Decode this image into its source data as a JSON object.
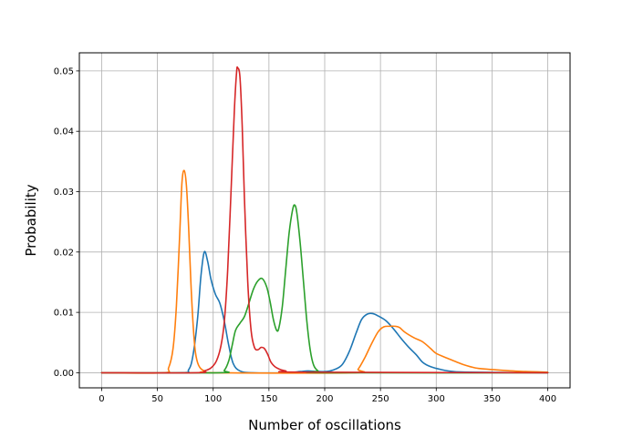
{
  "chart_data": {
    "type": "line",
    "title": "",
    "xlabel": "Number of oscillations",
    "ylabel": "Probability",
    "xlim": [
      -20,
      420
    ],
    "ylim": [
      -0.0025,
      0.053
    ],
    "xticks": [
      0,
      50,
      100,
      150,
      200,
      250,
      300,
      350,
      400
    ],
    "yticks": [
      0.0,
      0.01,
      0.02,
      0.03,
      0.04,
      0.05
    ],
    "xtick_labels": [
      "0",
      "50",
      "100",
      "150",
      "200",
      "250",
      "300",
      "350",
      "400"
    ],
    "ytick_labels": [
      "0.00",
      "0.01",
      "0.02",
      "0.03",
      "0.04",
      "0.05"
    ],
    "grid": true,
    "series": [
      {
        "color": "#1f77b4",
        "points": [
          [
            0,
            0
          ],
          [
            70,
            0
          ],
          [
            78,
            0.0005
          ],
          [
            82,
            0.003
          ],
          [
            86,
            0.009
          ],
          [
            89,
            0.016
          ],
          [
            92,
            0.02
          ],
          [
            95,
            0.0185
          ],
          [
            98,
            0.0155
          ],
          [
            102,
            0.013
          ],
          [
            106,
            0.0115
          ],
          [
            110,
            0.0085
          ],
          [
            114,
            0.0045
          ],
          [
            118,
            0.0015
          ],
          [
            124,
            0.0003
          ],
          [
            135,
            0
          ],
          [
            165,
            0
          ],
          [
            178,
            0.0002
          ],
          [
            185,
            0.0003
          ],
          [
            195,
            0.0002
          ],
          [
            205,
            0.0003
          ],
          [
            215,
            0.0012
          ],
          [
            222,
            0.0035
          ],
          [
            228,
            0.0065
          ],
          [
            233,
            0.0088
          ],
          [
            238,
            0.0097
          ],
          [
            243,
            0.0098
          ],
          [
            248,
            0.0094
          ],
          [
            255,
            0.0086
          ],
          [
            262,
            0.0072
          ],
          [
            268,
            0.0058
          ],
          [
            275,
            0.0043
          ],
          [
            282,
            0.003
          ],
          [
            288,
            0.0017
          ],
          [
            295,
            0.001
          ],
          [
            305,
            0.0005
          ],
          [
            315,
            0.0002
          ],
          [
            330,
            0.0001
          ],
          [
            400,
            0
          ]
        ]
      },
      {
        "color": "#ff7f0e",
        "points": [
          [
            0,
            0
          ],
          [
            55,
            0
          ],
          [
            60,
            0.0008
          ],
          [
            64,
            0.004
          ],
          [
            67,
            0.011
          ],
          [
            70,
            0.023
          ],
          [
            72,
            0.0315
          ],
          [
            74,
            0.0335
          ],
          [
            76,
            0.031
          ],
          [
            78,
            0.024
          ],
          [
            80,
            0.015
          ],
          [
            82,
            0.008
          ],
          [
            84,
            0.0035
          ],
          [
            87,
            0.0012
          ],
          [
            92,
            0.0003
          ],
          [
            100,
            0
          ],
          [
            225,
            0
          ],
          [
            230,
            0.0006
          ],
          [
            236,
            0.0025
          ],
          [
            242,
            0.0048
          ],
          [
            248,
            0.0068
          ],
          [
            253,
            0.0076
          ],
          [
            258,
            0.0077
          ],
          [
            263,
            0.0077
          ],
          [
            267,
            0.0075
          ],
          [
            272,
            0.0067
          ],
          [
            280,
            0.0058
          ],
          [
            288,
            0.0051
          ],
          [
            295,
            0.004
          ],
          [
            300,
            0.0032
          ],
          [
            310,
            0.0024
          ],
          [
            318,
            0.0018
          ],
          [
            325,
            0.0013
          ],
          [
            335,
            0.0008
          ],
          [
            345,
            0.0006
          ],
          [
            360,
            0.0004
          ],
          [
            380,
            0.0002
          ],
          [
            400,
            0.0001
          ]
        ]
      },
      {
        "color": "#2ca02c",
        "points": [
          [
            0,
            0
          ],
          [
            105,
            0
          ],
          [
            110,
            0.0004
          ],
          [
            114,
            0.002
          ],
          [
            117,
            0.0045
          ],
          [
            120,
            0.007
          ],
          [
            124,
            0.0082
          ],
          [
            128,
            0.0093
          ],
          [
            132,
            0.0115
          ],
          [
            136,
            0.0138
          ],
          [
            140,
            0.0152
          ],
          [
            144,
            0.0156
          ],
          [
            148,
            0.0142
          ],
          [
            151,
            0.0118
          ],
          [
            154,
            0.0088
          ],
          [
            157,
            0.007
          ],
          [
            159,
            0.0075
          ],
          [
            162,
            0.011
          ],
          [
            165,
            0.017
          ],
          [
            168,
            0.023
          ],
          [
            171,
            0.0268
          ],
          [
            173,
            0.0278
          ],
          [
            175,
            0.0265
          ],
          [
            178,
            0.0215
          ],
          [
            181,
            0.015
          ],
          [
            184,
            0.0085
          ],
          [
            187,
            0.0038
          ],
          [
            190,
            0.0013
          ],
          [
            194,
            0.0003
          ],
          [
            200,
            0
          ],
          [
            400,
            0
          ]
        ]
      },
      {
        "color": "#d62728",
        "points": [
          [
            0,
            0
          ],
          [
            85,
            0
          ],
          [
            92,
            0.0003
          ],
          [
            98,
            0.0008
          ],
          [
            103,
            0.002
          ],
          [
            107,
            0.0045
          ],
          [
            110,
            0.0085
          ],
          [
            113,
            0.017
          ],
          [
            116,
            0.03
          ],
          [
            119,
            0.0435
          ],
          [
            121,
            0.0498
          ],
          [
            122,
            0.0505
          ],
          [
            124,
            0.049
          ],
          [
            126,
            0.041
          ],
          [
            128,
            0.029
          ],
          [
            131,
            0.015
          ],
          [
            134,
            0.007
          ],
          [
            137,
            0.0042
          ],
          [
            140,
            0.0038
          ],
          [
            143,
            0.0042
          ],
          [
            146,
            0.004
          ],
          [
            149,
            0.003
          ],
          [
            152,
            0.0017
          ],
          [
            157,
            0.0008
          ],
          [
            165,
            0.0003
          ],
          [
            180,
            0.0001
          ],
          [
            400,
            0
          ]
        ]
      }
    ]
  }
}
